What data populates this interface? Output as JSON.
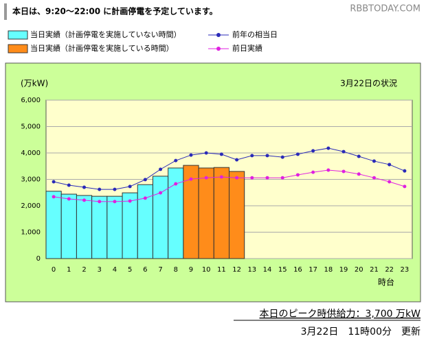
{
  "header": {
    "notice": "本日は、9:20〜22:00 に計画停電を予定しています。",
    "watermark": "RBBTODAY.COM"
  },
  "chart_data": {
    "type": "bar-line",
    "y_label": "(万kW)",
    "annotation": "3月22日の状況",
    "x_label": "時台",
    "categories": [
      "0",
      "1",
      "2",
      "3",
      "4",
      "5",
      "6",
      "7",
      "8",
      "9",
      "10",
      "11",
      "12",
      "13",
      "14",
      "15",
      "16",
      "17",
      "18",
      "19",
      "20",
      "21",
      "22",
      "23"
    ],
    "series": [
      {
        "name": "当日実績（計画停電を実施していない時間）",
        "kind": "bar",
        "color": "#66ffff",
        "values": [
          2550,
          2440,
          2390,
          2360,
          2360,
          2490,
          2800,
          3120,
          3430,
          null,
          null,
          null,
          null,
          null,
          null,
          null,
          null,
          null,
          null,
          null,
          null,
          null,
          null,
          null
        ]
      },
      {
        "name": "当日実績（計画停電を実施している時間）",
        "kind": "bar",
        "color": "#ff8c1a",
        "values": [
          null,
          null,
          null,
          null,
          null,
          null,
          null,
          null,
          null,
          3530,
          3430,
          3450,
          3300,
          null,
          null,
          null,
          null,
          null,
          null,
          null,
          null,
          null,
          null,
          null
        ]
      },
      {
        "name": "前年の相当日",
        "kind": "line",
        "color": "#2a2ab8",
        "values": [
          2910,
          2780,
          2700,
          2620,
          2620,
          2730,
          2990,
          3380,
          3710,
          3920,
          4000,
          3950,
          3740,
          3900,
          3900,
          3840,
          3950,
          4080,
          4180,
          4050,
          3870,
          3690,
          3560,
          3320
        ]
      },
      {
        "name": "前日実績",
        "kind": "line",
        "color": "#e020e0",
        "values": [
          2340,
          2260,
          2210,
          2160,
          2160,
          2180,
          2290,
          2490,
          2830,
          3010,
          3060,
          3090,
          3060,
          3060,
          3060,
          3060,
          3170,
          3270,
          3350,
          3300,
          3200,
          3060,
          2910,
          2730
        ]
      }
    ],
    "ylim": [
      0,
      6000
    ],
    "yticks": [
      0,
      {
        "value": 1000,
        "label": "1,000"
      },
      {
        "value": 2000,
        "label": "2,000"
      },
      {
        "value": 3000,
        "label": "3,000"
      },
      {
        "value": 4000,
        "label": "4,000"
      },
      {
        "value": 5000,
        "label": "5,000"
      },
      {
        "value": 6000,
        "label": "6,000"
      }
    ],
    "grid": true
  },
  "footer": {
    "peak": "本日のピーク時供給力：3,700 万kW",
    "updated": "3月22日　11時00分　更新"
  }
}
